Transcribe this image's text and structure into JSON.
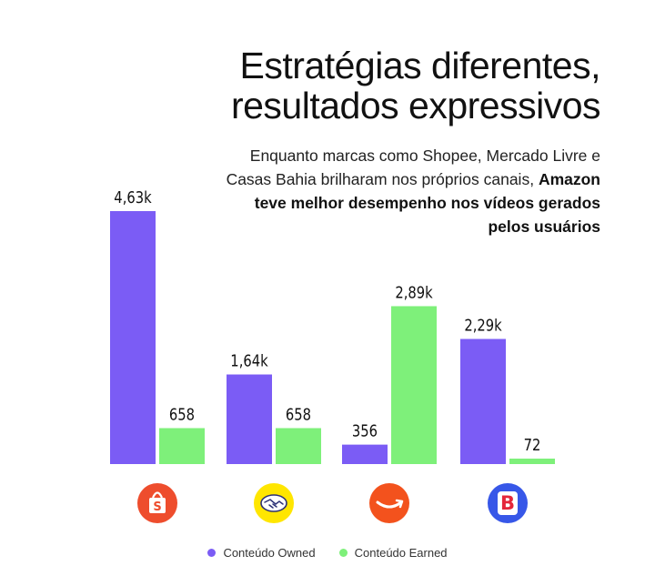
{
  "header": {
    "title_line1": "Estratégias diferentes,",
    "title_line2": "resultados expressivos",
    "subtitle_plain": "Enquanto marcas como Shopee, Mercado Livre e Casas Bahia brilharam nos próprios canais, ",
    "subtitle_bold": "Amazon teve melhor desempenho nos vídeos gerados pelos usuários"
  },
  "colors": {
    "owned": "#7b5cf5",
    "earned": "#7ef07a",
    "shopee": "#ee4d2d",
    "mercadolivre": "#ffe600",
    "amazon": "#f3521d",
    "casasbahia": "#3757e8"
  },
  "icons": [
    "shopee-logo-icon",
    "mercadolivre-logo-icon",
    "amazon-logo-icon",
    "casasbahia-logo-icon"
  ],
  "chart_data": {
    "type": "bar",
    "categories": [
      "Shopee",
      "Mercado Livre",
      "Amazon",
      "Casas Bahia"
    ],
    "series": [
      {
        "name": "Conteúdo Owned",
        "values": [
          4630,
          1640,
          356,
          2290
        ],
        "labels": [
          "4,63k",
          "1,64k",
          "356",
          "2,29k"
        ]
      },
      {
        "name": "Conteúdo Earned",
        "values": [
          658,
          658,
          2890,
          72
        ],
        "labels": [
          "658",
          "658",
          "2,89k",
          "72"
        ]
      }
    ],
    "ylim": [
      0,
      4630
    ],
    "grid": false,
    "legend_position": "bottom"
  }
}
